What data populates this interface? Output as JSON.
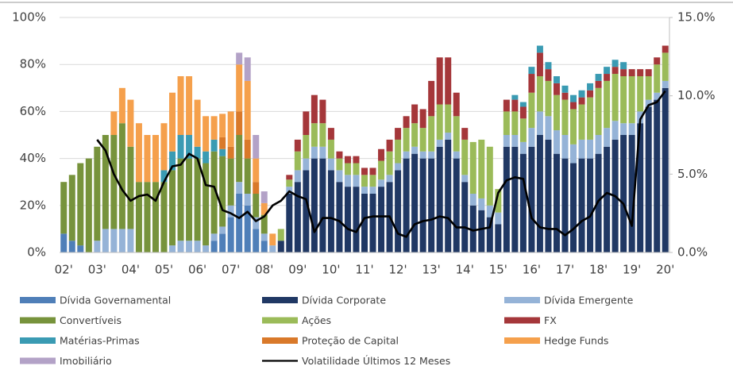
{
  "chart_data": {
    "type": "bar",
    "stacked": true,
    "grid": true,
    "legend": "bottom",
    "categories": [
      "02'",
      null,
      null,
      null,
      "03'",
      null,
      null,
      null,
      "04'",
      null,
      null,
      null,
      "05'",
      null,
      null,
      null,
      "06'",
      null,
      null,
      null,
      "07'",
      null,
      null,
      null,
      "08'",
      null,
      null,
      null,
      "09'",
      null,
      null,
      null,
      "10'",
      null,
      null,
      null,
      "11'",
      null,
      null,
      null,
      "12'",
      null,
      null,
      null,
      "13'",
      null,
      null,
      null,
      "14'",
      null,
      null,
      null,
      "15'",
      null,
      null,
      null,
      "16'",
      null,
      null,
      null,
      "17'",
      null,
      null,
      null,
      "18'",
      null,
      null,
      null,
      "19'",
      null,
      null,
      null,
      "20'"
    ],
    "ylim": [
      0,
      100
    ],
    "yticks": [
      {
        "value": 0,
        "label": "0%"
      },
      {
        "value": 20,
        "label": "20%"
      },
      {
        "value": 40,
        "label": "40%"
      },
      {
        "value": 60,
        "label": "60%"
      },
      {
        "value": 80,
        "label": "80%"
      },
      {
        "value": 100,
        "label": "100%"
      }
    ],
    "y2lim": [
      0,
      15
    ],
    "y2ticks": [
      {
        "value": 0,
        "label": "0.0%"
      },
      {
        "value": 5,
        "label": "5.0%"
      },
      {
        "value": 10,
        "label": "10.0%"
      },
      {
        "value": 15,
        "label": "15.0%"
      }
    ],
    "series": [
      {
        "name": "Dívida Governamental",
        "color": "#4f7fb8",
        "values": [
          8,
          5,
          3,
          0,
          0,
          0,
          0,
          0,
          0,
          0,
          0,
          0,
          0,
          0,
          0,
          0,
          0,
          0,
          5,
          8,
          15,
          25,
          20,
          10,
          5,
          0,
          0,
          0,
          0,
          0,
          0,
          0,
          0,
          0,
          0,
          0,
          0,
          0,
          0,
          0,
          0,
          0,
          0,
          0,
          0,
          0,
          0,
          0,
          0,
          0,
          0,
          0,
          0,
          0,
          0,
          0,
          0,
          0,
          0,
          0,
          0,
          0,
          0,
          0,
          0,
          0,
          0,
          0,
          0,
          0,
          0,
          0,
          0
        ]
      },
      {
        "name": "Dívida Corporate",
        "color": "#203864",
        "values": [
          0,
          0,
          0,
          0,
          0,
          0,
          0,
          0,
          0,
          0,
          0,
          0,
          0,
          0,
          0,
          0,
          0,
          0,
          0,
          0,
          0,
          0,
          0,
          0,
          0,
          0,
          5,
          25,
          30,
          35,
          40,
          40,
          35,
          30,
          28,
          28,
          25,
          25,
          28,
          30,
          35,
          40,
          42,
          40,
          40,
          45,
          48,
          40,
          30,
          20,
          18,
          15,
          12,
          45,
          45,
          42,
          45,
          50,
          48,
          42,
          40,
          38,
          40,
          40,
          42,
          45,
          48,
          50,
          50,
          55,
          62,
          65,
          70
        ]
      },
      {
        "name": "Dívida Emergente",
        "color": "#95b3d7",
        "values": [
          0,
          0,
          0,
          0,
          5,
          10,
          10,
          10,
          10,
          0,
          0,
          0,
          0,
          3,
          5,
          5,
          5,
          3,
          3,
          3,
          5,
          5,
          5,
          5,
          3,
          3,
          0,
          3,
          5,
          5,
          5,
          5,
          5,
          5,
          5,
          5,
          3,
          3,
          3,
          3,
          3,
          3,
          3,
          3,
          3,
          3,
          3,
          3,
          3,
          5,
          5,
          5,
          5,
          5,
          5,
          5,
          8,
          10,
          10,
          10,
          10,
          8,
          8,
          8,
          8,
          8,
          8,
          5,
          5,
          5,
          3,
          3,
          3
        ]
      },
      {
        "name": "Convertíveis",
        "color": "#77933c",
        "values": [
          22,
          28,
          35,
          40,
          40,
          40,
          40,
          45,
          35,
          30,
          30,
          30,
          30,
          32,
          35,
          35,
          35,
          35,
          35,
          30,
          20,
          20,
          15,
          10,
          8,
          0,
          0,
          0,
          0,
          0,
          0,
          0,
          0,
          0,
          0,
          0,
          0,
          0,
          0,
          0,
          0,
          0,
          0,
          0,
          0,
          0,
          0,
          0,
          0,
          0,
          0,
          0,
          0,
          0,
          0,
          0,
          0,
          0,
          0,
          0,
          0,
          0,
          0,
          0,
          0,
          0,
          0,
          0,
          0,
          0,
          0,
          0,
          0
        ]
      },
      {
        "name": "Ações",
        "color": "#9bbb59",
        "values": [
          0,
          0,
          0,
          0,
          0,
          0,
          0,
          0,
          0,
          0,
          0,
          0,
          0,
          0,
          0,
          0,
          0,
          0,
          0,
          0,
          0,
          0,
          0,
          0,
          0,
          0,
          5,
          3,
          8,
          10,
          10,
          10,
          8,
          5,
          5,
          5,
          5,
          5,
          8,
          10,
          10,
          10,
          10,
          10,
          15,
          15,
          12,
          15,
          15,
          22,
          25,
          25,
          10,
          10,
          10,
          10,
          15,
          15,
          15,
          15,
          15,
          15,
          15,
          18,
          20,
          20,
          20,
          20,
          20,
          15,
          10,
          12,
          12
        ]
      },
      {
        "name": "FX",
        "color": "#a5373a",
        "values": [
          0,
          0,
          0,
          0,
          0,
          0,
          0,
          0,
          0,
          0,
          0,
          0,
          0,
          0,
          0,
          0,
          0,
          0,
          0,
          0,
          0,
          0,
          0,
          0,
          0,
          0,
          0,
          2,
          5,
          10,
          12,
          10,
          5,
          3,
          3,
          3,
          3,
          3,
          5,
          5,
          5,
          5,
          8,
          8,
          15,
          20,
          20,
          10,
          5,
          0,
          0,
          0,
          0,
          5,
          5,
          5,
          8,
          10,
          5,
          5,
          3,
          3,
          3,
          3,
          3,
          3,
          3,
          3,
          3,
          3,
          3,
          3,
          3
        ]
      },
      {
        "name": "Matérias-Primas",
        "color": "#3a9bb3",
        "values": [
          0,
          0,
          0,
          0,
          0,
          0,
          0,
          0,
          0,
          0,
          0,
          0,
          5,
          8,
          10,
          10,
          5,
          5,
          5,
          3,
          0,
          0,
          0,
          0,
          0,
          0,
          0,
          0,
          0,
          0,
          0,
          0,
          0,
          0,
          0,
          0,
          0,
          0,
          0,
          0,
          0,
          0,
          0,
          0,
          0,
          0,
          0,
          0,
          0,
          0,
          0,
          0,
          0,
          0,
          2,
          2,
          3,
          3,
          3,
          3,
          3,
          3,
          3,
          3,
          3,
          3,
          3,
          3,
          0,
          0,
          0,
          0,
          0
        ]
      },
      {
        "name": "Proteção de Capital",
        "color": "#d9792a",
        "values": [
          0,
          0,
          0,
          0,
          0,
          0,
          0,
          0,
          0,
          0,
          0,
          0,
          0,
          0,
          0,
          0,
          0,
          0,
          0,
          5,
          5,
          10,
          8,
          5,
          0,
          0,
          0,
          0,
          0,
          0,
          0,
          0,
          0,
          0,
          0,
          0,
          0,
          0,
          0,
          0,
          0,
          0,
          0,
          0,
          0,
          0,
          0,
          0,
          0,
          0,
          0,
          0,
          0,
          0,
          0,
          0,
          0,
          0,
          0,
          0,
          0,
          0,
          0,
          0,
          0,
          0,
          0,
          0,
          0,
          0,
          0,
          0,
          0
        ]
      },
      {
        "name": "Hedge Funds",
        "color": "#f5a04c",
        "values": [
          0,
          0,
          0,
          0,
          0,
          0,
          10,
          15,
          20,
          25,
          20,
          20,
          20,
          25,
          25,
          25,
          20,
          15,
          10,
          10,
          15,
          20,
          25,
          10,
          5,
          5,
          0,
          0,
          0,
          0,
          0,
          0,
          0,
          0,
          0,
          0,
          0,
          0,
          0,
          0,
          0,
          0,
          0,
          0,
          0,
          0,
          0,
          0,
          0,
          0,
          0,
          0,
          0,
          0,
          0,
          0,
          0,
          0,
          0,
          0,
          0,
          0,
          0,
          0,
          0,
          0,
          0,
          0,
          0,
          0,
          0,
          0,
          0
        ]
      },
      {
        "name": "Imobiliário",
        "color": "#b3a2c7",
        "values": [
          0,
          0,
          0,
          0,
          0,
          0,
          0,
          0,
          0,
          0,
          0,
          0,
          0,
          0,
          0,
          0,
          0,
          0,
          0,
          0,
          0,
          5,
          10,
          10,
          5,
          0,
          0,
          0,
          0,
          0,
          0,
          0,
          0,
          0,
          0,
          0,
          0,
          0,
          0,
          0,
          0,
          0,
          0,
          0,
          0,
          0,
          0,
          0,
          0,
          0,
          0,
          0,
          0,
          0,
          0,
          0,
          0,
          0,
          0,
          0,
          0,
          0,
          0,
          0,
          0,
          0,
          0,
          0,
          0,
          0,
          0,
          0,
          0
        ]
      },
      {
        "name": "Volatilidade Últimos 12 Meses",
        "color": "#000000",
        "type": "line",
        "axis": "y2",
        "values": [
          null,
          null,
          null,
          null,
          7.2,
          6.5,
          5.0,
          4.0,
          3.3,
          3.6,
          3.7,
          3.3,
          4.5,
          5.5,
          5.6,
          6.3,
          6.0,
          4.3,
          4.2,
          2.7,
          2.5,
          2.2,
          2.6,
          2.0,
          2.3,
          3.0,
          3.3,
          3.9,
          3.6,
          3.4,
          1.3,
          2.2,
          2.2,
          2.0,
          1.5,
          1.3,
          2.2,
          2.3,
          2.3,
          2.3,
          1.2,
          1.0,
          1.8,
          2.0,
          2.1,
          2.3,
          2.2,
          1.6,
          1.6,
          1.4,
          1.5,
          1.6,
          3.8,
          4.6,
          4.8,
          4.7,
          2.2,
          1.6,
          1.5,
          1.5,
          1.1,
          1.5,
          2.0,
          2.3,
          3.3,
          3.8,
          3.6,
          3.1,
          1.7,
          8.5,
          9.4,
          9.6,
          10.3
        ]
      }
    ]
  }
}
